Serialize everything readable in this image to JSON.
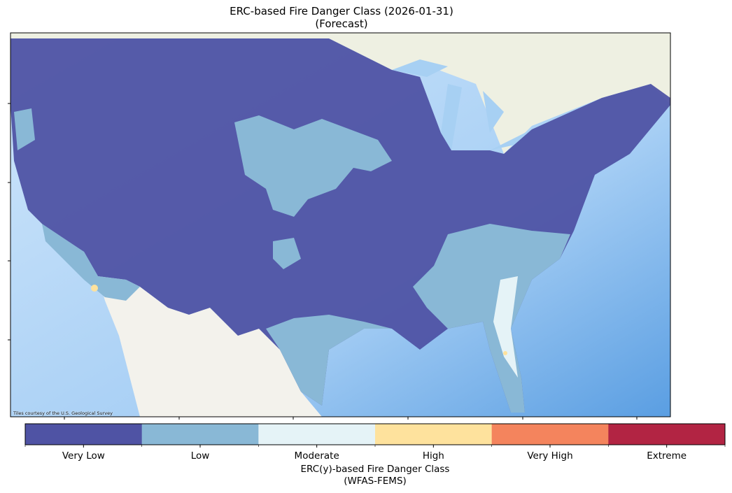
{
  "title": "ERC-based Fire Danger Class (2026-01-31)",
  "subtitle": "(Forecast)",
  "attribution": "Tiles courtesy of the U.S. Geological Survey",
  "colorbar": {
    "classes": [
      {
        "label": "Very Low",
        "color": "#4f53a4"
      },
      {
        "label": "Low",
        "color": "#89b8d6"
      },
      {
        "label": "Moderate",
        "color": "#e5f3f7"
      },
      {
        "label": "High",
        "color": "#fee29d"
      },
      {
        "label": "Very High",
        "color": "#f4845d"
      },
      {
        "label": "Extreme",
        "color": "#b22443"
      }
    ],
    "title": "ERC(y)-based Fire Danger Class",
    "subtitle": "(WFAS-FEMS)"
  }
}
